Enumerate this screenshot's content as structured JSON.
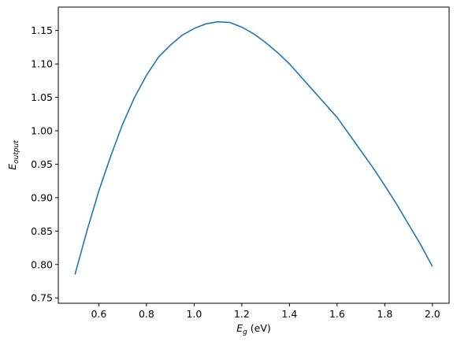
{
  "chart_data": {
    "type": "line",
    "title": "",
    "xlabel": {
      "main": "E",
      "sub": "g",
      "suffix": " (eV)"
    },
    "ylabel": {
      "main": "E",
      "sub": "output"
    },
    "xlim": [
      0.43,
      2.07
    ],
    "ylim": [
      0.742,
      1.185
    ],
    "xticks": [
      0.6,
      0.8,
      1.0,
      1.2,
      1.4,
      1.6,
      1.8,
      2.0
    ],
    "xtick_labels": [
      "0.6",
      "0.8",
      "1.0",
      "1.2",
      "1.4",
      "1.6",
      "1.8",
      "2.0"
    ],
    "yticks": [
      0.75,
      0.8,
      0.85,
      0.9,
      0.95,
      1.0,
      1.05,
      1.1,
      1.15
    ],
    "ytick_labels": [
      "0.75",
      "0.80",
      "0.85",
      "0.90",
      "0.95",
      "1.00",
      "1.05",
      "1.10",
      "1.15"
    ],
    "grid": false,
    "series": [
      {
        "color": "#1f77b4",
        "x": [
          0.5,
          0.55,
          0.6,
          0.65,
          0.7,
          0.75,
          0.8,
          0.85,
          0.9,
          0.95,
          1.0,
          1.05,
          1.1,
          1.15,
          1.2,
          1.25,
          1.3,
          1.35,
          1.4,
          1.45,
          1.5,
          1.55,
          1.6,
          1.65,
          1.7,
          1.75,
          1.8,
          1.85,
          1.9,
          1.95,
          2.0
        ],
        "y": [
          0.785,
          0.85,
          0.91,
          0.962,
          1.01,
          1.05,
          1.083,
          1.11,
          1.128,
          1.143,
          1.153,
          1.16,
          1.163,
          1.162,
          1.155,
          1.145,
          1.132,
          1.117,
          1.1,
          1.08,
          1.06,
          1.04,
          1.02,
          0.995,
          0.97,
          0.945,
          0.918,
          0.89,
          0.86,
          0.83,
          0.797
        ]
      }
    ]
  }
}
